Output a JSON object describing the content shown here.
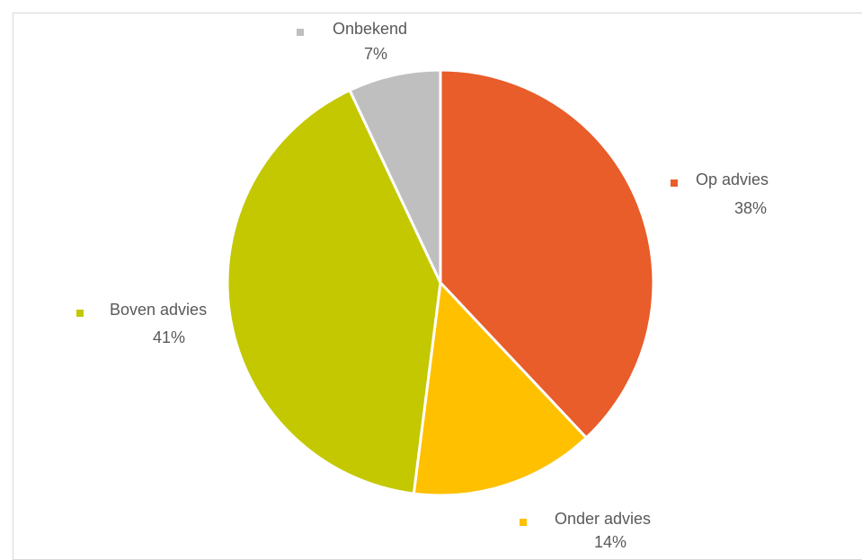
{
  "chart_data": {
    "type": "pie",
    "title": "",
    "categories": [
      "Op advies",
      "Onder advies",
      "Boven advies",
      "Onbekend"
    ],
    "values": [
      38,
      14,
      41,
      7
    ],
    "percent_labels": [
      "38%",
      "14%",
      "41%",
      "7%"
    ],
    "colors": [
      "#E85D2A",
      "#FFC000",
      "#C3C800",
      "#BFBFBF"
    ],
    "start_angle": "12 o'clock",
    "direction": "clockwise",
    "legend": "none (category labels beside slices)"
  }
}
